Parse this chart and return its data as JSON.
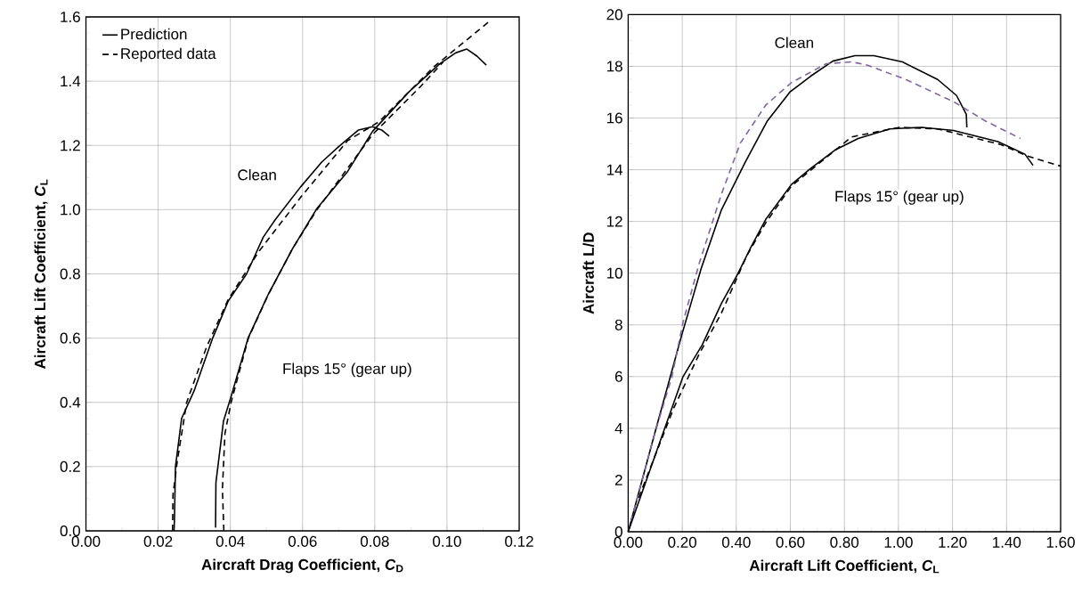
{
  "chart_data": [
    {
      "type": "line",
      "xlabel": "Aircraft Drag Coefficient, *C*$_{D}$",
      "ylabel": "Aircraft Lift Coefficient, *C*$_{L}$",
      "xlim": [
        0,
        0.12
      ],
      "ylim": [
        0,
        1.6
      ],
      "xticks": [
        {
          "value": 0,
          "label": "0.00"
        },
        {
          "value": 0.02,
          "label": "0.02"
        },
        {
          "value": 0.04,
          "label": "0.04"
        },
        {
          "value": 0.06,
          "label": "0.06"
        },
        {
          "value": 0.08,
          "label": "0.08"
        },
        {
          "value": 0.1,
          "label": "0.10"
        },
        {
          "value": 0.12,
          "label": "0.12"
        }
      ],
      "yticks": [
        {
          "value": 0,
          "label": "0.0"
        },
        0.2,
        0.4,
        0.6,
        0.8,
        {
          "value": 1,
          "label": "1.0"
        },
        1.2,
        1.4,
        1.6
      ],
      "grid": true,
      "legend": "top left",
      "annotations": [
        "Clean",
        "Flaps 15° (gear up)"
      ],
      "series": [
        {
          "name": "Prediction",
          "color": "#000000",
          "line_style": "solid",
          "x": [
            0.0244,
            0.0245,
            0.0248,
            0.0265,
            0.03,
            0.0351,
            0.0394,
            0.0445,
            0.0491,
            0.0525,
            0.0594,
            0.0653,
            0.07,
            0.0755,
            0.0794,
            0.0819,
            0.084
          ],
          "values": [
            0,
            0.03,
            0.2,
            0.35,
            0.437,
            0.6,
            0.715,
            0.8,
            0.914,
            0.97,
            1.07,
            1.148,
            1.196,
            1.248,
            1.258,
            1.248,
            1.229
          ]
        },
        {
          "name": "Reported data",
          "color": "#000000",
          "line_style": "dashed",
          "x": [
            0.024,
            0.0241,
            0.0253,
            0.0279,
            0.0334,
            0.0394,
            0.0479,
            0.0598,
            0.0725,
            0.0811,
            0.0964,
            0.1114
          ],
          "values": [
            0,
            0.111,
            0.217,
            0.4,
            0.572,
            0.72,
            0.87,
            1.043,
            1.215,
            1.273,
            1.445,
            1.583
          ]
        },
        {
          "color": "#000000",
          "line_style": "solid",
          "x": [
            0.0359,
            0.036,
            0.0381,
            0.0402,
            0.0449,
            0.0504,
            0.0572,
            0.064,
            0.0725,
            0.0794,
            0.0896,
            0.098,
            0.1024,
            0.1055,
            0.1083,
            0.1109
          ],
          "values": [
            0.01,
            0.15,
            0.342,
            0.418,
            0.6,
            0.734,
            0.878,
            1.004,
            1.119,
            1.244,
            1.368,
            1.454,
            1.488,
            1.5,
            1.478,
            1.45
          ]
        },
        {
          "color": "#000000",
          "line_style": "dashed",
          "x": [
            0.0382,
            0.0378,
            0.0385,
            0.0402,
            0.045,
            0.0507,
            0.0572,
            0.064,
            0.0794,
            0.093,
            0.0989
          ],
          "values": [
            0,
            0.13,
            0.303,
            0.4,
            0.6,
            0.74,
            0.878,
            1.0,
            1.234,
            1.387,
            1.459
          ]
        }
      ]
    },
    {
      "type": "line",
      "xlabel": "Aircraft Lift Coefficient, *C*$_{L}$",
      "ylabel": "Aircraft L/D",
      "xlim": [
        0,
        1.6
      ],
      "ylim": [
        0,
        20
      ],
      "xticks": [
        {
          "value": 0,
          "label": "0.00"
        },
        {
          "value": 0.2,
          "label": "0.20"
        },
        {
          "value": 0.4,
          "label": "0.40"
        },
        {
          "value": 0.6,
          "label": "0.60"
        },
        {
          "value": 0.8,
          "label": "0.80"
        },
        {
          "value": 1,
          "label": "1.00"
        },
        {
          "value": 1.2,
          "label": "1.20"
        },
        {
          "value": 1.4,
          "label": "1.40"
        },
        {
          "value": 1.6,
          "label": "1.60"
        }
      ],
      "yticks": [
        0,
        2,
        4,
        6,
        8,
        10,
        12,
        14,
        16,
        18,
        20
      ],
      "grid": true,
      "annotations": [
        "Clean",
        "Flaps 15° (gear up)"
      ],
      "series": [
        {
          "color": "#000000",
          "line_style": "solid",
          "x": [
            0,
            0.104,
            0.156,
            0.198,
            0.27,
            0.345,
            0.433,
            0.515,
            0.598,
            0.674,
            0.757,
            0.839,
            0.909,
            1.015,
            1.145,
            1.215,
            1.251,
            1.253
          ],
          "values": [
            0,
            4.03,
            6.0,
            7.6,
            10.18,
            12.45,
            14.29,
            15.89,
            17.0,
            17.61,
            18.2,
            18.41,
            18.41,
            18.17,
            17.49,
            16.87,
            16.14,
            15.64
          ]
        },
        {
          "color": "#8064a2",
          "line_style": "dashed",
          "x": [
            0,
            0.098,
            0.162,
            0.203,
            0.262,
            0.345,
            0.415,
            0.509,
            0.604,
            0.733,
            0.827,
            0.886,
            1.027,
            1.204,
            1.321,
            1.451
          ],
          "values": [
            0,
            3.79,
            6.0,
            8.1,
            10.35,
            13.06,
            15.03,
            16.5,
            17.37,
            18.1,
            18.17,
            18.04,
            17.49,
            16.63,
            15.89,
            15.21
          ]
        },
        {
          "color": "#000000",
          "line_style": "solid",
          "x": [
            0,
            0.128,
            0.203,
            0.274,
            0.345,
            0.404,
            0.45,
            0.509,
            0.604,
            0.674,
            0.768,
            0.851,
            0.968,
            1.086,
            1.204,
            1.368,
            1.468,
            1.498
          ],
          "values": [
            0,
            3.79,
            6.0,
            7.23,
            8.83,
            9.94,
            10.92,
            12.08,
            13.43,
            14.04,
            14.78,
            15.21,
            15.58,
            15.64,
            15.52,
            15.09,
            14.6,
            14.17
          ]
        },
        {
          "color": "#000000",
          "line_style": "dashed",
          "x": [
            0.039,
            0.168,
            0.262,
            0.345,
            0.439,
            0.509,
            0.604,
            0.697,
            0.827,
            1.004,
            1.145,
            1.38,
            1.475,
            1.6
          ],
          "values": [
            1.32,
            4.77,
            6.86,
            8.46,
            10.68,
            11.95,
            13.37,
            14.17,
            15.27,
            15.64,
            15.58,
            14.97,
            14.54,
            14.14
          ]
        }
      ]
    }
  ]
}
